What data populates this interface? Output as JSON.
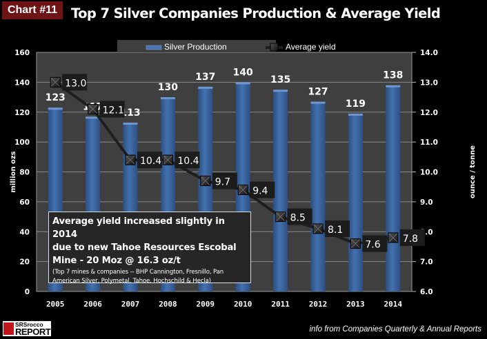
{
  "badge": "Chart #11",
  "title": "Top 7 Silver Companies Production & Average Yield",
  "note": {
    "lines": [
      "Average yield increased slightly in 2014",
      "due to new Tahoe Resources Escobal",
      "Mine - 20 Moz @ 16.3 oz/t"
    ],
    "sub_lines": [
      "(Top 7 mines & companies -- BHP Cannington, Fresnillo, Pan",
      "American Silver, Polymetal, Tahoe, Hochschild & Hecla)"
    ]
  },
  "logo": {
    "line1": "SRSrocco",
    "line2": "REPORT"
  },
  "source": "info from Companies Quarterly & Annual Reports",
  "colors": {
    "bar": "#3a64a0",
    "line": "#1e1e1e",
    "plot_bg": "#3f3f3f",
    "grid": "#8a8a8a",
    "badge": "#6e1416"
  },
  "chart_data": {
    "type": "bar",
    "title": "Top 7 Silver Companies Production & Average Yield",
    "categories": [
      "2005",
      "2006",
      "2007",
      "2008",
      "2009",
      "2010",
      "2011",
      "2012",
      "2013",
      "2014"
    ],
    "series": [
      {
        "name": "Silver Production",
        "type": "bar",
        "axis": "left",
        "values": [
          123,
          117,
          113,
          130,
          137,
          140,
          135,
          127,
          119,
          138
        ]
      },
      {
        "name": "Average yield",
        "type": "line",
        "axis": "right",
        "values": [
          13.0,
          12.1,
          10.4,
          10.4,
          9.7,
          9.4,
          8.5,
          8.1,
          7.6,
          7.8
        ]
      }
    ],
    "ylabel": "million ozs",
    "y2label": "ounce  / tonne",
    "ylim": [
      0,
      160
    ],
    "y2lim": [
      6.0,
      14.0
    ],
    "yticks": [
      "0",
      "20",
      "40",
      "60",
      "80",
      "100",
      "120",
      "140",
      "160"
    ],
    "y2ticks": [
      "6.0",
      "7.0",
      "8.0",
      "9.0",
      "10.0",
      "11.0",
      "12.0",
      "13.0",
      "14.0"
    ],
    "bar_labels": [
      "123",
      "117",
      "113",
      "130",
      "137",
      "140",
      "135",
      "127",
      "119",
      "138"
    ],
    "line_labels": [
      "13.0",
      "12.1",
      "10.4",
      "10.4",
      "9.7",
      "9.4",
      "8.5",
      "8.1",
      "7.6",
      "7.8"
    ],
    "grid": true,
    "legend_position": "top-center"
  }
}
